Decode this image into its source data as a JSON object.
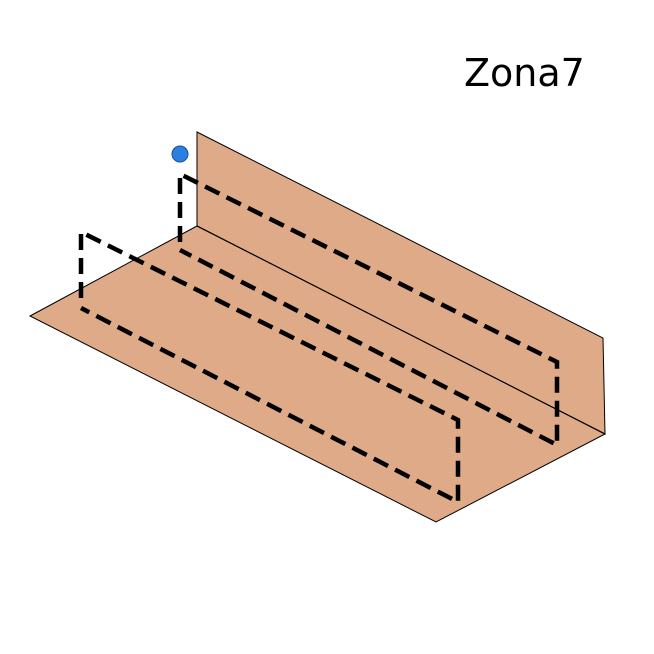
{
  "zone": {
    "label": "Zona7"
  },
  "colors": {
    "surface_fill": "#deaa87",
    "outline": "#000000",
    "dashed_path": "#000000",
    "marker": "#2a7fe0"
  }
}
